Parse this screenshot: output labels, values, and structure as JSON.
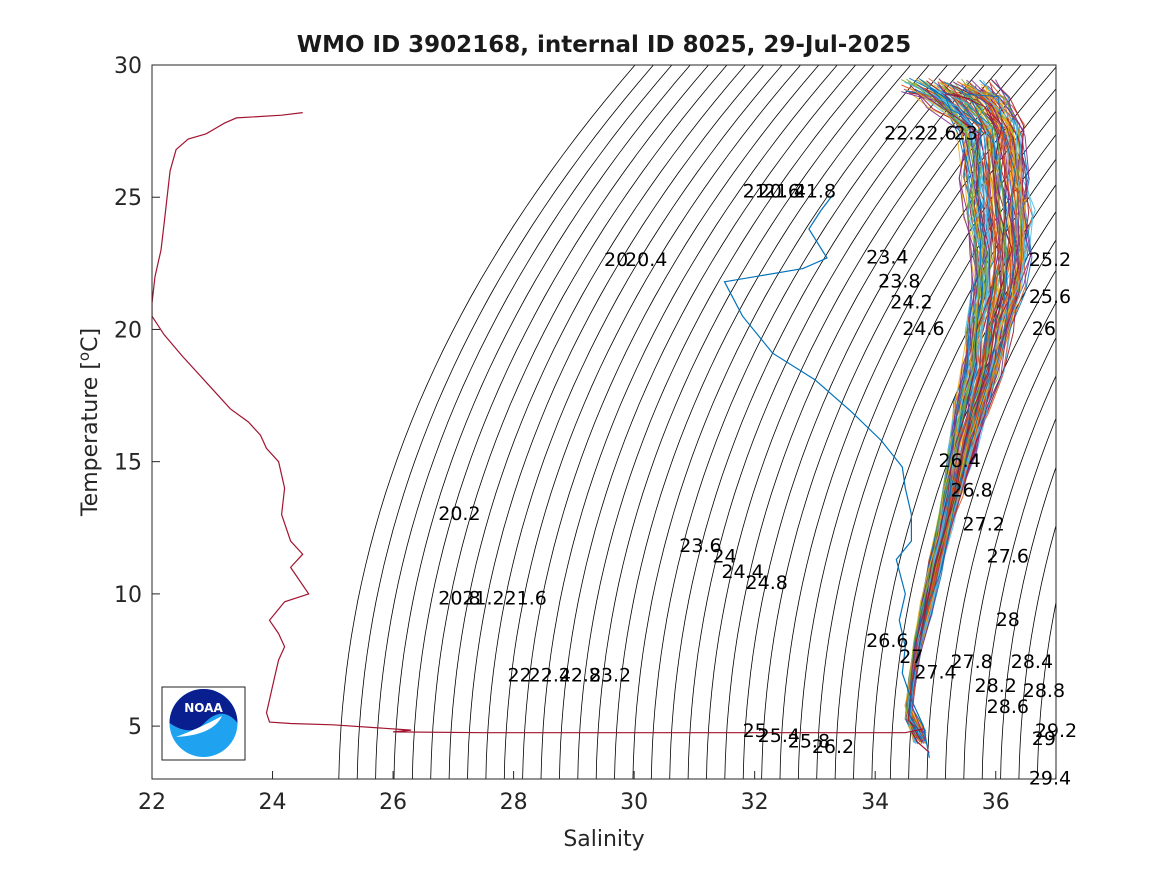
{
  "chart_data": {
    "type": "line",
    "title": "WMO ID 3902168, internal ID 8025, 29-Jul-2025",
    "xlabel": "Salinity",
    "ylabel": "Temperature [",
    "ylabel_degree": "o",
    "ylabel_unit": "C]",
    "xlim": [
      22,
      37
    ],
    "ylim": [
      3,
      30
    ],
    "xticks": [
      22,
      24,
      26,
      28,
      30,
      32,
      34,
      36
    ],
    "yticks": [
      5,
      10,
      15,
      20,
      25,
      30
    ],
    "grid": false,
    "logo": {
      "text": "NOAA",
      "colors": {
        "navy": "#0a1f8f",
        "sky": "#1fa3f0",
        "white": "#ffffff"
      }
    },
    "colors": {
      "first_profile": "#0072bd",
      "latest_profile": "#a2142f",
      "isopycnal": "#000000",
      "palette": [
        "#0072bd",
        "#d95319",
        "#edb120",
        "#7e2f8e",
        "#77ac30",
        "#4dbeee",
        "#a2142f"
      ]
    },
    "isopycnal_labels": [
      {
        "text": "20.6",
        "s": 32.4,
        "t": 25.2
      },
      {
        "text": "21",
        "s": 32.0,
        "t": 25.2
      },
      {
        "text": "21.4",
        "s": 32.5,
        "t": 25.2
      },
      {
        "text": "21.8",
        "s": 33.0,
        "t": 25.2
      },
      {
        "text": "20",
        "s": 29.7,
        "t": 22.6
      },
      {
        "text": "20.4",
        "s": 30.2,
        "t": 22.6
      },
      {
        "text": "22.2",
        "s": 34.5,
        "t": 27.4
      },
      {
        "text": "22.6",
        "s": 35.0,
        "t": 27.4
      },
      {
        "text": "23",
        "s": 35.5,
        "t": 27.4
      },
      {
        "text": "23.4",
        "s": 34.2,
        "t": 22.7
      },
      {
        "text": "23.8",
        "s": 34.4,
        "t": 21.8
      },
      {
        "text": "24.2",
        "s": 34.6,
        "t": 21.0
      },
      {
        "text": "24.6",
        "s": 34.8,
        "t": 20.0
      },
      {
        "text": "25.2",
        "s": 36.9,
        "t": 22.6
      },
      {
        "text": "25.6",
        "s": 36.9,
        "t": 21.2
      },
      {
        "text": "26",
        "s": 36.8,
        "t": 20.0
      },
      {
        "text": "26.4",
        "s": 35.4,
        "t": 15.0
      },
      {
        "text": "26.8",
        "s": 35.6,
        "t": 13.9
      },
      {
        "text": "27.2",
        "s": 35.8,
        "t": 12.6
      },
      {
        "text": "27.6",
        "s": 36.2,
        "t": 11.4
      },
      {
        "text": "28",
        "s": 36.2,
        "t": 9.0
      },
      {
        "text": "28.4",
        "s": 36.6,
        "t": 7.4
      },
      {
        "text": "28.8",
        "s": 36.8,
        "t": 6.3
      },
      {
        "text": "28.2",
        "s": 36.0,
        "t": 6.5
      },
      {
        "text": "28.6",
        "s": 36.2,
        "t": 5.7
      },
      {
        "text": "29.2",
        "s": 37.0,
        "t": 4.8
      },
      {
        "text": "29",
        "s": 36.8,
        "t": 4.5
      },
      {
        "text": "29.4",
        "s": 36.9,
        "t": 3.0
      },
      {
        "text": "20.2",
        "s": 27.1,
        "t": 13.0
      },
      {
        "text": "23.6",
        "s": 31.1,
        "t": 11.8
      },
      {
        "text": "24",
        "s": 31.5,
        "t": 11.4
      },
      {
        "text": "24.4",
        "s": 31.8,
        "t": 10.8
      },
      {
        "text": "24.8",
        "s": 32.2,
        "t": 10.4
      },
      {
        "text": "20.8",
        "s": 27.1,
        "t": 9.8
      },
      {
        "text": "21.2",
        "s": 27.5,
        "t": 9.8
      },
      {
        "text": "21.6",
        "s": 28.2,
        "t": 9.8
      },
      {
        "text": "22",
        "s": 28.1,
        "t": 6.9
      },
      {
        "text": "22.4",
        "s": 28.6,
        "t": 6.9
      },
      {
        "text": "22.8",
        "s": 29.1,
        "t": 6.9
      },
      {
        "text": "23.2",
        "s": 29.6,
        "t": 6.9
      },
      {
        "text": "26.6",
        "s": 34.2,
        "t": 8.2
      },
      {
        "text": "27",
        "s": 34.6,
        "t": 7.6
      },
      {
        "text": "27.4",
        "s": 35.0,
        "t": 7.0
      },
      {
        "text": "27.8",
        "s": 35.6,
        "t": 7.4
      },
      {
        "text": "25",
        "s": 32.0,
        "t": 4.8
      },
      {
        "text": "25.4",
        "s": 32.4,
        "t": 4.6
      },
      {
        "text": "25.8",
        "s": 32.9,
        "t": 4.4
      },
      {
        "text": "26.2",
        "s": 33.3,
        "t": 4.2
      }
    ],
    "series": [
      {
        "role": "latest",
        "salinity": [
          24.5,
          24.15,
          23.4,
          23.2,
          22.9,
          22.6,
          22.4,
          22.35,
          22.3,
          22.25,
          22.2,
          22.15,
          22.1,
          22.05,
          22.0,
          22.0,
          22.2,
          22.5,
          22.9,
          23.3,
          23.6,
          23.8,
          23.9,
          24.1,
          24.2,
          24.15,
          24.3,
          24.5,
          24.3,
          24.6,
          24.2,
          23.95,
          24.1,
          24.2,
          24.1,
          24.05,
          24.0,
          23.95,
          23.9,
          23.95,
          24.3,
          25.0,
          26.3,
          26.0,
          27.5,
          28.5,
          30.0,
          32.0,
          34.5,
          34.8,
          34.6,
          34.7,
          34.9
        ],
        "temperature": [
          28.2,
          28.1,
          28.0,
          27.8,
          27.4,
          27.2,
          26.8,
          26.4,
          26.0,
          25.0,
          24.0,
          23.0,
          22.5,
          22.0,
          21.0,
          20.5,
          19.8,
          19.0,
          18.0,
          17.0,
          16.5,
          16.0,
          15.5,
          15.0,
          14.0,
          13.0,
          12.0,
          11.5,
          11.0,
          10.0,
          9.7,
          9.0,
          8.5,
          8.0,
          7.5,
          7.0,
          6.5,
          6.0,
          5.5,
          5.15,
          5.1,
          5.05,
          4.85,
          4.78,
          4.75,
          4.75,
          4.75,
          4.75,
          4.75,
          4.9,
          4.8,
          4.4,
          4.0
        ]
      },
      {
        "role": "first",
        "salinity": [
          33.3,
          33.1,
          32.9,
          33.2,
          32.8,
          31.5,
          31.8,
          32.3,
          33.0,
          33.6,
          34.1,
          34.45,
          34.5,
          34.6,
          34.6,
          34.35,
          34.5,
          34.4,
          34.5,
          34.45,
          34.6,
          34.8,
          34.9
        ],
        "temperature": [
          25.1,
          24.5,
          23.8,
          22.7,
          22.3,
          21.8,
          20.5,
          19.1,
          18.1,
          16.9,
          15.8,
          14.8,
          14.0,
          13.0,
          12.0,
          11.3,
          10.0,
          9.0,
          8.0,
          7.0,
          6.0,
          5.0,
          3.8
        ]
      }
    ]
  }
}
